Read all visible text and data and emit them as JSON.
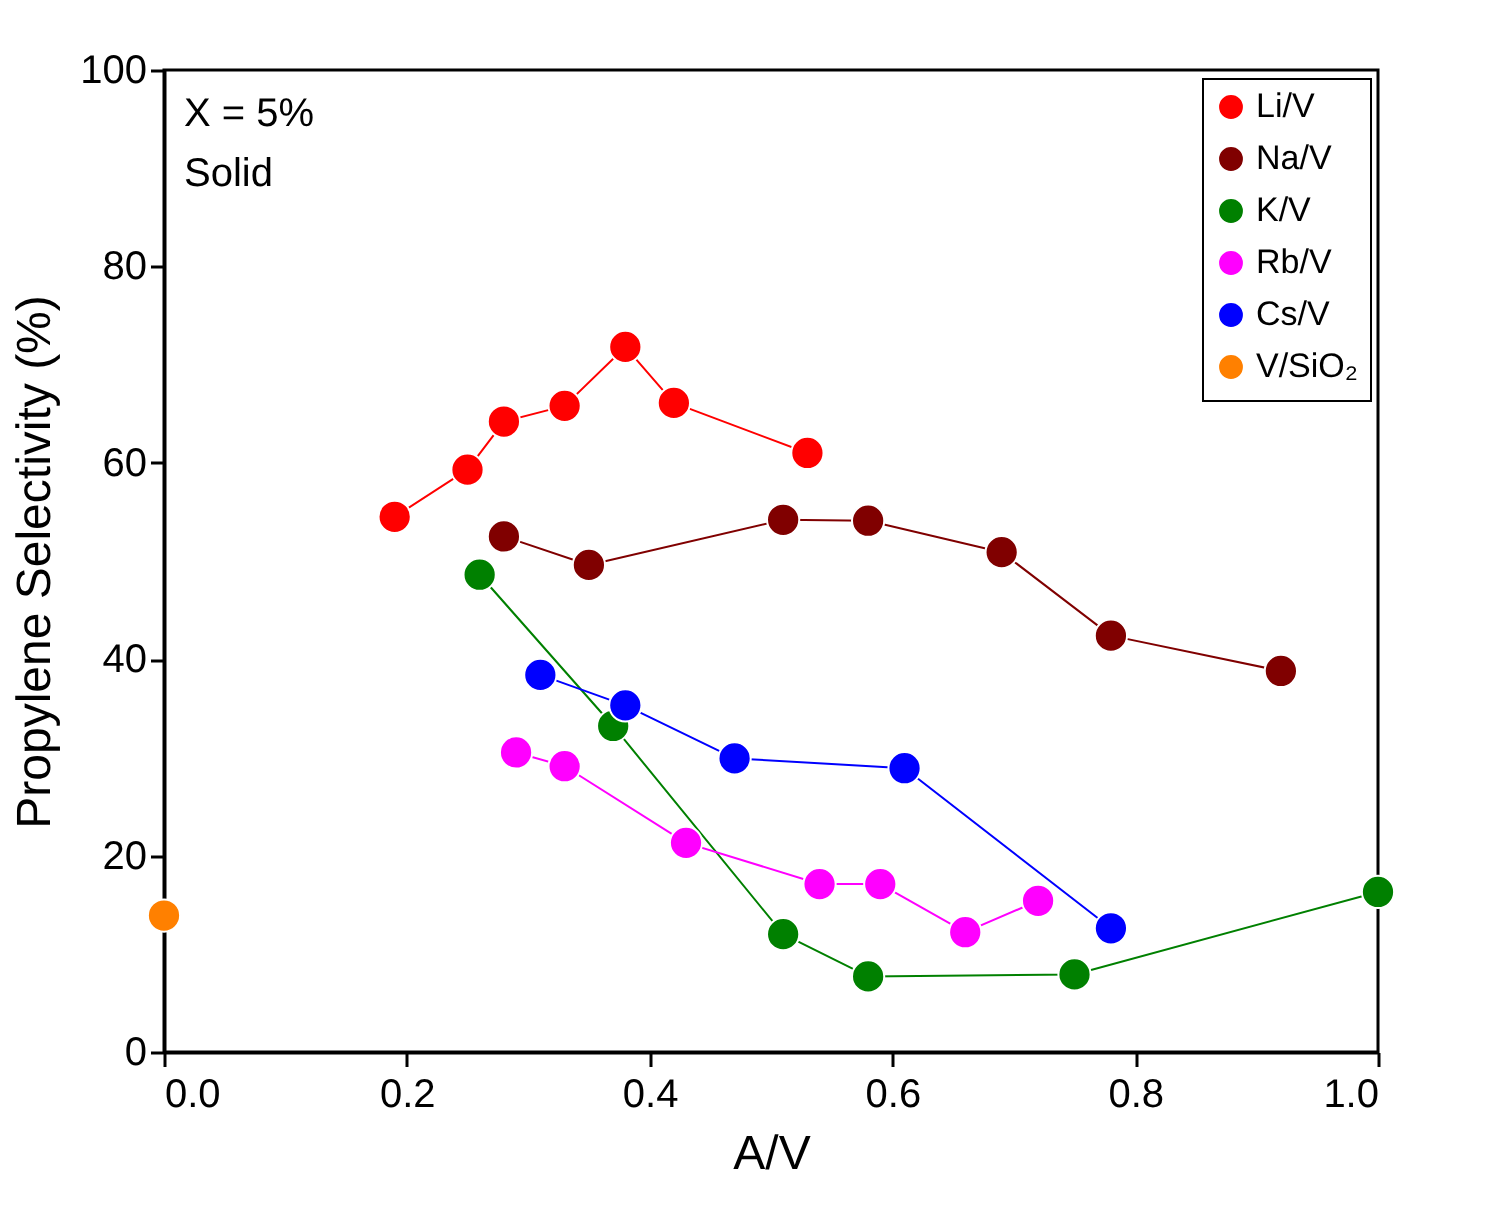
{
  "chart_data": {
    "type": "line",
    "xlabel": "A/V",
    "ylabel": "Propylene Selectivity (%)",
    "xlim": [
      0,
      1
    ],
    "xticks": [
      {
        "value": 0,
        "label": "0.0"
      },
      {
        "value": 0.2,
        "label": "0.2"
      },
      {
        "value": 0.4,
        "label": "0.4"
      },
      {
        "value": 0.6,
        "label": "0.6"
      },
      {
        "value": 0.8,
        "label": "0.8"
      },
      {
        "value": 1,
        "label": "1.0"
      }
    ],
    "ylim": [
      0,
      100
    ],
    "yticks": [
      0,
      20,
      40,
      60,
      80,
      100
    ],
    "grid": false,
    "legend": "top right",
    "marker": "circle",
    "line_style": "solid",
    "annotations": [
      "X = 5%",
      "Solid"
    ],
    "series": [
      {
        "name": "Li/V",
        "color": "#ff0000",
        "x": [
          0.19,
          0.25,
          0.28,
          0.33,
          0.38,
          0.42,
          0.53
        ],
        "values": [
          54.5,
          59.3,
          64.2,
          65.8,
          71.8,
          66.1,
          61.0
        ]
      },
      {
        "name": "Na/V",
        "color": "#800000",
        "x": [
          0.28,
          0.35,
          0.51,
          0.58,
          0.69,
          0.78,
          0.92
        ],
        "values": [
          52.5,
          49.6,
          54.2,
          54.1,
          50.9,
          42.4,
          38.8
        ]
      },
      {
        "name": "K/V",
        "color": "#008000",
        "x": [
          0.26,
          0.37,
          0.51,
          0.58,
          0.75,
          1.0
        ],
        "values": [
          48.6,
          33.2,
          12.0,
          7.7,
          7.9,
          16.3
        ]
      },
      {
        "name": "Rb/V",
        "color": "#ff00ff",
        "x": [
          0.29,
          0.33,
          0.43,
          0.54,
          0.59,
          0.66,
          0.72
        ],
        "values": [
          30.5,
          29.1,
          21.3,
          17.1,
          17.1,
          12.2,
          15.4
        ]
      },
      {
        "name": "Cs/V",
        "color": "#0000ff",
        "x": [
          0.31,
          0.38,
          0.47,
          0.61,
          0.78
        ],
        "values": [
          38.4,
          35.3,
          29.9,
          28.9,
          12.6
        ]
      },
      {
        "name": "V/SiO₂",
        "color": "#ff8000",
        "x": [
          0
        ],
        "values": [
          13.9
        ]
      }
    ]
  }
}
